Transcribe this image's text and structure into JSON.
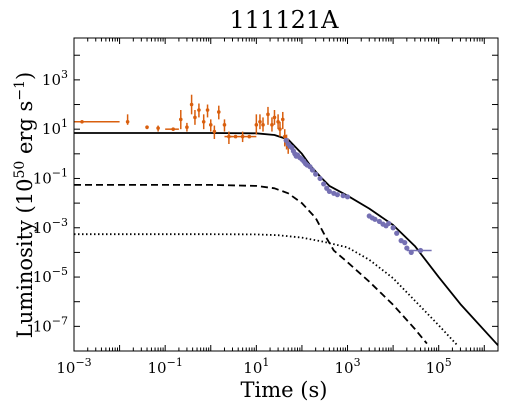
{
  "chart_data": {
    "type": "line",
    "title": "111121A",
    "xlabel": "Time (s)",
    "ylabel": {
      "main": "Luminosity (10",
      "exp": "50",
      "unit": " erg s",
      "unit_exp": "−1",
      "close": ")"
    },
    "xscale": "log",
    "yscale": "log",
    "xlim": [
      0.001,
      2000000
    ],
    "ylim": [
      1e-08,
      50000
    ],
    "xticks": [
      {
        "value": 0.001,
        "base": "10",
        "exp": "−3"
      },
      {
        "value": 0.1,
        "base": "10",
        "exp": "−1"
      },
      {
        "value": 10,
        "base": "10",
        "exp": "1"
      },
      {
        "value": 1000,
        "base": "10",
        "exp": "3"
      },
      {
        "value": 100000,
        "base": "10",
        "exp": "5"
      }
    ],
    "yticks": [
      {
        "value": 1e-07,
        "base": "10",
        "exp": "−7"
      },
      {
        "value": 1e-05,
        "base": "10",
        "exp": "−5"
      },
      {
        "value": 0.001,
        "base": "10",
        "exp": "−3"
      },
      {
        "value": 0.1,
        "base": "10",
        "exp": "−1"
      },
      {
        "value": 10,
        "base": "10",
        "exp": "1"
      },
      {
        "value": 1000,
        "base": "10",
        "exp": "3"
      }
    ],
    "grid": false,
    "legend": "none",
    "colors": {
      "orange": "#d95f0e",
      "purple": "#7570b3",
      "line": "#000000"
    },
    "lines": [
      {
        "style": "solid",
        "points": [
          [
            0.001,
            7
          ],
          [
            1,
            7
          ],
          [
            10,
            6.8
          ],
          [
            25,
            5.8
          ],
          [
            50,
            3.8
          ],
          [
            100,
            1.0
          ],
          [
            150,
            0.35
          ],
          [
            250,
            0.12
          ],
          [
            400,
            0.05
          ],
          [
            1000,
            0.02
          ],
          [
            3000,
            0.006
          ],
          [
            10000,
            0.0013
          ],
          [
            30000,
            0.00018
          ],
          [
            100000,
            1e-05
          ],
          [
            300000,
            8e-07
          ],
          [
            2000000,
            1.7e-08
          ]
        ]
      },
      {
        "style": "dashed",
        "points": [
          [
            0.001,
            0.055
          ],
          [
            1,
            0.055
          ],
          [
            10,
            0.05
          ],
          [
            25,
            0.04
          ],
          [
            50,
            0.025
          ],
          [
            100,
            0.01
          ],
          [
            200,
            0.0025
          ],
          [
            300,
            0.0006
          ],
          [
            500,
            0.00012
          ],
          [
            1000,
            4e-05
          ],
          [
            3000,
            6.5e-06
          ],
          [
            10000,
            7.5e-07
          ],
          [
            30000,
            7.8e-08
          ],
          [
            55000,
            2e-08
          ]
        ]
      },
      {
        "style": "dotted",
        "points": [
          [
            0.001,
            0.00055
          ],
          [
            1,
            0.00055
          ],
          [
            10,
            0.00054
          ],
          [
            30,
            0.0005
          ],
          [
            100,
            0.0004
          ],
          [
            300,
            0.00027
          ],
          [
            1000,
            0.00016
          ],
          [
            3000,
            5e-05
          ],
          [
            10000,
            9e-06
          ],
          [
            30000,
            1.1e-06
          ],
          [
            100000,
            1.1e-07
          ],
          [
            250000,
            1.8e-08
          ]
        ]
      }
    ],
    "series": [
      {
        "color": "orange",
        "points": [
          {
            "x": 0.0015,
            "y": 20,
            "xl": 0.001,
            "xh": 0.01
          },
          {
            "x": 0.015,
            "y": 20,
            "yl": 15,
            "yh": 40
          },
          {
            "x": 0.04,
            "y": 12,
            "yl": 10,
            "yh": 14
          },
          {
            "x": 0.07,
            "y": 11,
            "yl": 8,
            "yh": 14
          },
          {
            "x": 0.15,
            "y": 10,
            "xl": 0.1,
            "xh": 0.2
          },
          {
            "x": 0.22,
            "y": 25,
            "yl": 10,
            "yh": 60
          },
          {
            "x": 0.3,
            "y": 12,
            "yl": 8,
            "yh": 18
          },
          {
            "x": 0.38,
            "y": 100,
            "yl": 40,
            "yh": 250
          },
          {
            "x": 0.45,
            "y": 30,
            "yl": 15,
            "yh": 60
          },
          {
            "x": 0.55,
            "y": 60,
            "yl": 30,
            "yh": 110
          },
          {
            "x": 0.7,
            "y": 20,
            "yl": 10,
            "yh": 40
          },
          {
            "x": 0.85,
            "y": 60,
            "yl": 30,
            "yh": 100
          },
          {
            "x": 1,
            "y": 15,
            "yl": 8,
            "yh": 25
          },
          {
            "x": 1.2,
            "y": 8,
            "yl": 4,
            "yh": 14
          },
          {
            "x": 1.5,
            "y": 50,
            "yl": 25,
            "yh": 90
          },
          {
            "x": 2,
            "y": 15,
            "yl": 8,
            "yh": 25
          },
          {
            "x": 2.5,
            "y": 5,
            "yl": 2.5,
            "yh": 8,
            "xl": 2,
            "xh": 3
          },
          {
            "x": 3.5,
            "y": 5,
            "xl": 2.5,
            "xh": 5
          },
          {
            "x": 5,
            "y": 5,
            "yl": 3,
            "yh": 8
          },
          {
            "x": 7,
            "y": 5,
            "xl": 5,
            "xh": 10
          },
          {
            "x": 10,
            "y": 15,
            "yl": 6,
            "yh": 40
          },
          {
            "x": 12,
            "y": 20,
            "yl": 10,
            "yh": 40
          },
          {
            "x": 14,
            "y": 15,
            "yl": 8,
            "yh": 30
          },
          {
            "x": 18,
            "y": 40,
            "yl": 15,
            "yh": 80
          },
          {
            "x": 22,
            "y": 15,
            "yl": 8,
            "yh": 30
          },
          {
            "x": 25,
            "y": 30,
            "yl": 15,
            "yh": 60
          },
          {
            "x": 30,
            "y": 20,
            "yl": 10,
            "yh": 40
          },
          {
            "x": 33,
            "y": 10,
            "yl": 5,
            "yh": 20
          },
          {
            "x": 38,
            "y": 25,
            "yl": 10,
            "yh": 50
          },
          {
            "x": 42,
            "y": 5,
            "yl": 2,
            "yh": 10
          },
          {
            "x": 46,
            "y": 3,
            "yl": 1.5,
            "yh": 6
          },
          {
            "x": 50,
            "y": 2,
            "yl": 1,
            "yh": 4
          }
        ]
      },
      {
        "color": "purple",
        "points": [
          {
            "x": 45,
            "y": 3.5
          },
          {
            "x": 50,
            "y": 2.5
          },
          {
            "x": 55,
            "y": 2.0
          },
          {
            "x": 60,
            "y": 1.8
          },
          {
            "x": 65,
            "y": 1.3
          },
          {
            "x": 70,
            "y": 1.0
          },
          {
            "x": 75,
            "y": 0.8
          },
          {
            "x": 80,
            "y": 0.9
          },
          {
            "x": 90,
            "y": 0.7
          },
          {
            "x": 100,
            "y": 0.6
          },
          {
            "x": 110,
            "y": 0.5
          },
          {
            "x": 120,
            "y": 0.4
          },
          {
            "x": 130,
            "y": 0.35
          },
          {
            "x": 150,
            "y": 0.3
          },
          {
            "x": 170,
            "y": 0.22
          },
          {
            "x": 200,
            "y": 0.15
          },
          {
            "x": 250,
            "y": 0.1
          },
          {
            "x": 300,
            "y": 0.06
          },
          {
            "x": 350,
            "y": 0.04
          },
          {
            "x": 400,
            "y": 0.03
          },
          {
            "x": 500,
            "y": 0.025
          },
          {
            "x": 600,
            "y": 0.022
          },
          {
            "x": 800,
            "y": 0.02
          },
          {
            "x": 1000,
            "y": 0.018
          },
          {
            "x": 3000,
            "y": 0.003
          },
          {
            "x": 3500,
            "y": 0.0025
          },
          {
            "x": 4000,
            "y": 0.0022
          },
          {
            "x": 5000,
            "y": 0.0018
          },
          {
            "x": 6000,
            "y": 0.0014
          },
          {
            "x": 7000,
            "y": 0.0012
          },
          {
            "x": 8000,
            "y": 0.0015
          },
          {
            "x": 10000,
            "y": 0.001
          },
          {
            "x": 12000,
            "y": 0.0006
          },
          {
            "x": 15000,
            "y": 0.0003
          },
          {
            "x": 18000,
            "y": 0.00025
          },
          {
            "x": 20000,
            "y": 0.00015
          },
          {
            "x": 25000,
            "y": 0.0001
          },
          {
            "x": 40000,
            "y": 0.00012,
            "xl": 20000,
            "xh": 70000
          }
        ]
      }
    ]
  }
}
